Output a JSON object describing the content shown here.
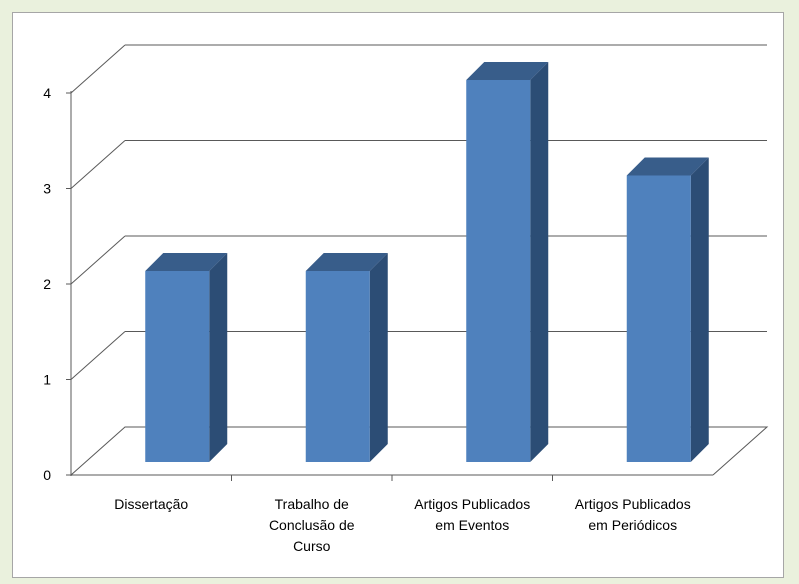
{
  "chart_data": {
    "type": "bar",
    "title": "",
    "xlabel": "",
    "ylabel": "",
    "categories": [
      [
        "Dissertação"
      ],
      [
        "Trabalho de",
        "Conclusão de",
        "Curso"
      ],
      [
        "Artigos Publicados",
        "em Eventos"
      ],
      [
        "Artigos Publicados",
        "em Periódicos"
      ]
    ],
    "values": [
      2,
      2,
      4,
      3
    ],
    "ylim": [
      0,
      4
    ],
    "yticks": [
      "0",
      "1",
      "2",
      "3",
      "4"
    ],
    "grid": true,
    "legend": "none",
    "style": "3d-column",
    "colors": {
      "bar_front": "#4f81bd",
      "bar_side": "#2c4d75",
      "bar_top": "#385d8a",
      "gridline": "#595959",
      "page_background": "#eaf1dd"
    }
  }
}
